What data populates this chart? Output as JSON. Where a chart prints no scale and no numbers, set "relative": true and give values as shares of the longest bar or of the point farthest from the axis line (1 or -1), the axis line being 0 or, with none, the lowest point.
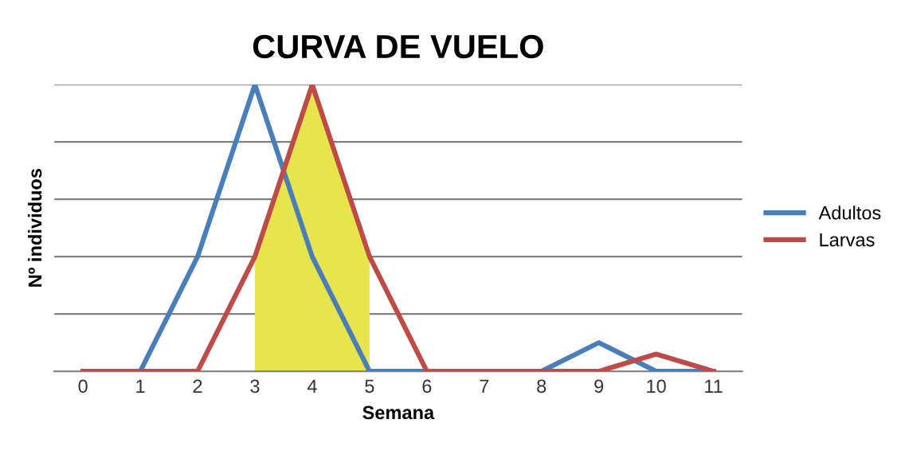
{
  "chart_data": {
    "type": "line",
    "title": "CURVA DE VUELO",
    "xlabel": "Semana",
    "ylabel": "Nº individuos",
    "relative": true,
    "grid": "y",
    "legend": "right",
    "marker": "none",
    "line_style": "solid",
    "x": [
      0,
      1,
      2,
      3,
      4,
      5,
      6,
      7,
      8,
      9,
      10,
      11
    ],
    "xlim": [
      -0.5,
      11.5
    ],
    "xticks": [
      0,
      1,
      2,
      3,
      4,
      5,
      6,
      7,
      8,
      9,
      10,
      11
    ],
    "series": [
      {
        "type": "area",
        "color": "#e8e44c",
        "x": [
          3,
          4,
          5
        ],
        "values": [
          0.4,
          1,
          0.4
        ]
      },
      {
        "name": "Adultos",
        "color": "#4a7ebb",
        "values": [
          0,
          0,
          0.4,
          1,
          0.4,
          0,
          0,
          0,
          0,
          0.1,
          0,
          0
        ]
      },
      {
        "name": "Larvas",
        "color": "#be4b48",
        "values": [
          0,
          0,
          0,
          0.4,
          1,
          0.4,
          0,
          0,
          0,
          0,
          0.06,
          0
        ]
      }
    ]
  }
}
